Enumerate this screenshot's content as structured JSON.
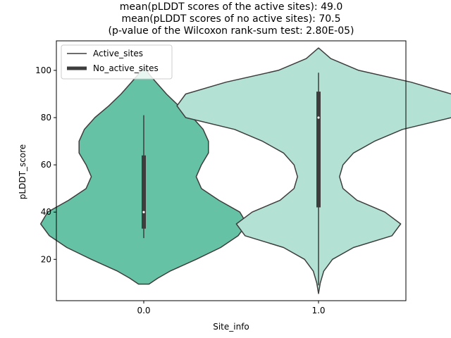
{
  "chart_data": {
    "type": "violin",
    "title_lines": [
      "mean(pLDDT scores of the active sites): 49.0",
      "mean(pLDDT scores of no active sites): 70.5",
      "(p-value of the Wilcoxon rank-sum test: 2.80E-05)"
    ],
    "xlabel": "Site_info",
    "ylabel": "pLDDT_score",
    "ylim": [
      2.5,
      112.5
    ],
    "yticks": [
      20,
      40,
      60,
      80,
      100
    ],
    "ytick_labels": [
      "20",
      "40",
      "60",
      "80",
      "100"
    ],
    "categories": [
      "0.0",
      "1.0"
    ],
    "legend": {
      "position": "top-left",
      "entries": [
        {
          "label": "Active_sites",
          "style": "thin"
        },
        {
          "label": "No_active_sites",
          "style": "thick"
        }
      ]
    },
    "colors": {
      "violin_0": "#66c2a5",
      "violin_1": "#b3e2d4",
      "edge": "#3d3d3d",
      "box": "#3d3d3d",
      "median": "#ffffff"
    },
    "violins": [
      {
        "category": "0.0",
        "kde_ys": [
          9.5,
          12,
          15,
          20,
          25,
          30,
          35,
          40,
          45,
          50,
          55,
          60,
          65,
          70,
          75,
          80,
          85,
          90,
          95,
          98,
          100,
          101.5
        ],
        "kde_widths": [
          0.03,
          0.08,
          0.15,
          0.3,
          0.44,
          0.54,
          0.59,
          0.55,
          0.43,
          0.33,
          0.3,
          0.33,
          0.37,
          0.37,
          0.34,
          0.28,
          0.2,
          0.13,
          0.07,
          0.035,
          0.015,
          0.0
        ],
        "whisker": [
          29,
          81
        ],
        "quartiles": [
          33,
          64
        ],
        "median": 40
      },
      {
        "category": "1.0",
        "kde_ys": [
          5.5,
          10,
          15,
          20,
          25,
          30,
          35,
          40,
          45,
          50,
          55,
          60,
          65,
          70,
          75,
          80,
          85,
          90,
          95,
          100,
          105,
          109.5
        ],
        "kde_widths": [
          0.0,
          0.01,
          0.03,
          0.08,
          0.2,
          0.42,
          0.47,
          0.38,
          0.22,
          0.14,
          0.12,
          0.14,
          0.2,
          0.32,
          0.48,
          0.76,
          0.81,
          0.76,
          0.53,
          0.23,
          0.07,
          0.0
        ],
        "whisker": [
          9,
          99
        ],
        "quartiles": [
          42,
          91
        ],
        "median": 80
      }
    ]
  }
}
